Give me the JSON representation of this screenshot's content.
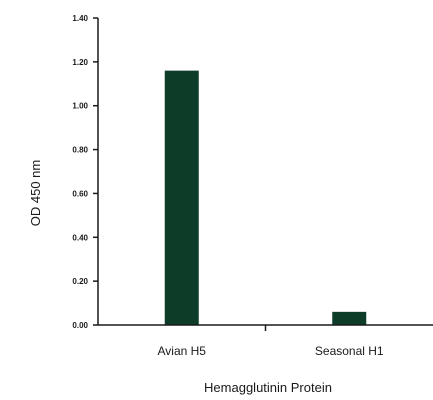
{
  "chart_data": {
    "type": "bar",
    "title": "",
    "xlabel": "Hemagglutinin Protein",
    "ylabel": "OD 450 nm",
    "categories": [
      "Avian H5",
      "Seasonal H1"
    ],
    "values": [
      1.16,
      0.06
    ],
    "ylim": [
      0,
      1.4
    ],
    "yticks": [
      0,
      0.2,
      0.4,
      0.6,
      0.8,
      1.0,
      1.2,
      1.4
    ],
    "ytick_labels": [
      "0.00",
      "0.20",
      "0.40",
      "0.60",
      "0.80",
      "1.00",
      "1.20",
      "1.40"
    ],
    "grid": false,
    "legend": "none",
    "bar_color": "#0d3d28"
  }
}
